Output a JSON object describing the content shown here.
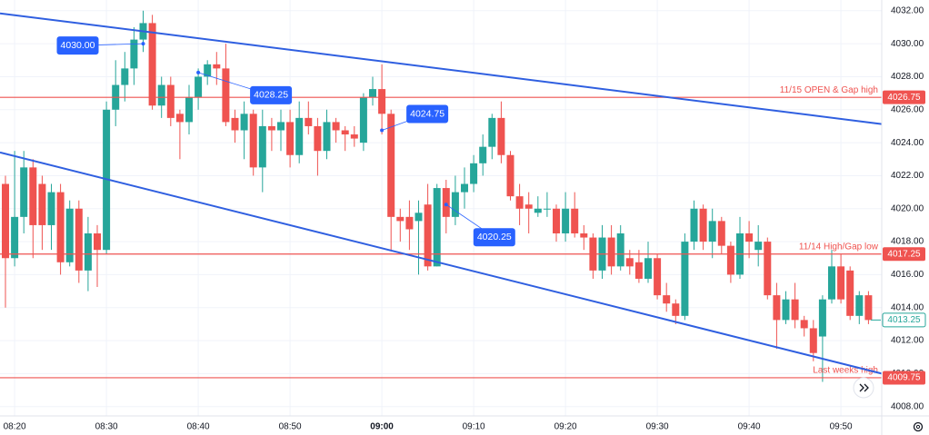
{
  "chart_data": {
    "type": "candlestick",
    "categories": [
      null,
      "08:20",
      null,
      null,
      null,
      null,
      null,
      null,
      null,
      null,
      null,
      "08:30",
      null,
      null,
      null,
      null,
      null,
      null,
      null,
      null,
      null,
      "08:40",
      null,
      null,
      null,
      null,
      null,
      null,
      null,
      null,
      null,
      "08:50",
      null,
      null,
      null,
      null,
      null,
      null,
      null,
      null,
      null,
      "09:00",
      null,
      null,
      null,
      null,
      null,
      null,
      null,
      null,
      null,
      "09:10",
      null,
      null,
      null,
      null,
      null,
      null,
      null,
      null,
      null,
      "09:20",
      null,
      null,
      null,
      null,
      null,
      null,
      null,
      null,
      null,
      "09:30",
      null,
      null,
      null,
      null,
      null,
      null,
      null,
      null,
      null,
      "09:40",
      null,
      null,
      null,
      null,
      null,
      null,
      null,
      null,
      null,
      "09:50",
      null,
      null,
      null
    ],
    "open": [
      4021.5,
      4017,
      4019.5,
      4022.5,
      4021.5,
      4019,
      4021,
      4016.75,
      4020,
      4016.25,
      4018.5,
      4017.5,
      4026,
      4027.5,
      4028.5,
      4030.25,
      4031.25,
      4026.25,
      4027.5,
      4025.75,
      4025.25,
      4026.75,
      4028,
      4028.75,
      4028.5,
      4025.5,
      4024.75,
      4025.75,
      4022.5,
      4025,
      4024.75,
      4025.25,
      4023.25,
      4025.5,
      4025,
      4023.5,
      4025.25,
      4024.75,
      4024.5,
      4024,
      4026.75,
      4027.25,
      4025.75,
      4019.5,
      4019.5,
      4019.25,
      4020.25,
      4016.5,
      4021.25,
      4019.5,
      4021,
      4021.5,
      4022.75,
      4023.75,
      4025.5,
      4023.25,
      4020.75,
      4020.25,
      4019.75,
      4020,
      4020,
      4018.5,
      4020,
      4018.5,
      4018.25,
      4016.25,
      4018.25,
      4016.5,
      4017,
      4016.75,
      4015.75,
      4017,
      4014.75,
      4014.25,
      4013.5,
      4018,
      4020,
      4018,
      4019.25,
      4017.75,
      4016,
      4018.5,
      4017.5,
      4018,
      4014.75,
      4013.25,
      4014.5,
      4013.25,
      4012.75,
      4012.25,
      4014.5,
      4016.5,
      4016.25,
      4013.5,
      4014.75
    ],
    "high": [
      4022,
      4023.5,
      4023.5,
      4023,
      4022,
      4021.5,
      4021.5,
      4020.5,
      4020.5,
      4019.5,
      4019,
      4026.5,
      4029,
      4029.5,
      4031,
      4032,
      4031.75,
      4028,
      4028,
      4026,
      4027.5,
      4028.5,
      4029,
      4029.5,
      4030,
      4026,
      4026.5,
      4026,
      4026,
      4025.5,
      4026,
      4026,
      4026.5,
      4026.5,
      4025.5,
      4026,
      4025.5,
      4025,
      4025,
      4027,
      4028,
      4028.75,
      4026,
      4020,
      4020.5,
      4020.5,
      4021.5,
      4021.5,
      4021.75,
      4022,
      4022.5,
      4023.25,
      4024.5,
      4025.75,
      4026.5,
      4023.5,
      4021.5,
      4021,
      4020.75,
      4021,
      4020.25,
      4021,
      4021,
      4019,
      4018.5,
      4019,
      4019,
      4019,
      4017.5,
      4017.5,
      4018,
      4017.25,
      4015.5,
      4014.5,
      4018.5,
      4020.5,
      4020.25,
      4020,
      4019.5,
      4018,
      4019.5,
      4019.25,
      4019,
      4018.25,
      4015.5,
      4015,
      4015.5,
      4013.5,
      4013.25,
      4014.75,
      4017.5,
      4017.25,
      4016.5,
      4015,
      4015
    ],
    "low": [
      4014,
      4016.5,
      4018.5,
      4017,
      4017.5,
      4017.5,
      4016,
      4016.5,
      4015.5,
      4015,
      4015.25,
      4017.25,
      4025,
      4026.5,
      4027.5,
      4029.5,
      4026,
      4025.5,
      4025,
      4023,
      4024.5,
      4026,
      4027.5,
      4027.5,
      4025,
      4024,
      4023,
      4022,
      4021,
      4023.5,
      4023.5,
      4022.5,
      4022.75,
      4024.5,
      4022,
      4023,
      4024,
      4023.5,
      4023.75,
      4023.5,
      4026.25,
      4024.5,
      4017.5,
      4018,
      4017.5,
      4016,
      4016.25,
      4016.5,
      4018.5,
      4019,
      4020,
      4021,
      4022,
      4023,
      4022.75,
      4020.5,
      4019,
      4018.5,
      4019.5,
      4019.5,
      4018,
      4018,
      4018.25,
      4017.5,
      4015.75,
      4015.75,
      4016,
      4016.25,
      4016,
      4015.5,
      4015.5,
      4014.5,
      4013.75,
      4013,
      4013.25,
      4017.5,
      4017.5,
      4017,
      4017.25,
      4015.5,
      4015.75,
      4017,
      4016.5,
      4014.5,
      4011.5,
      4013,
      4012.75,
      4012.25,
      4010.75,
      4009.5,
      4014.25,
      4014.25,
      4013.25,
      4013,
      4013
    ],
    "close": [
      4017,
      4019.5,
      4022.5,
      4019,
      4019,
      4021,
      4016.75,
      4020,
      4016.25,
      4018.5,
      4017.5,
      4026,
      4027.5,
      4028.5,
      4030.25,
      4031.25,
      4026.25,
      4027.5,
      4025.5,
      4025.25,
      4026.75,
      4028,
      4028.75,
      4028.5,
      4025.25,
      4024.75,
      4025.75,
      4022.5,
      4025,
      4024.75,
      4025.25,
      4023.25,
      4025.5,
      4025,
      4023.5,
      4025.25,
      4024.75,
      4024.5,
      4024.25,
      4026.75,
      4027.25,
      4025.75,
      4019.5,
      4019.25,
      4018.75,
      4019.75,
      4016.5,
      4021.25,
      4019.5,
      4021,
      4021.5,
      4022.75,
      4023.75,
      4025.5,
      4023.25,
      4020.75,
      4020,
      4020,
      4020,
      4020,
      4018.5,
      4020,
      4018.5,
      4018.25,
      4016.25,
      4018.25,
      4016.5,
      4018.5,
      4016.5,
      4015.75,
      4017,
      4014.75,
      4014.25,
      4013.5,
      4018,
      4020,
      4018,
      4019.25,
      4017.75,
      4016,
      4018.5,
      4018,
      4018,
      4014.75,
      4013.25,
      4014.5,
      4013.25,
      4012.75,
      4011.25,
      4014.5,
      4016.5,
      4014.5,
      4013.5,
      4014.75,
      4013.25
    ],
    "up_color": "#26a69a",
    "down_color": "#ef5350",
    "ylim": [
      4007.6,
      4032.65
    ],
    "yticks": [
      {
        "value": 4008,
        "label": "4008.00"
      },
      {
        "value": 4010,
        "label": "4010.00"
      },
      {
        "value": 4012,
        "label": "4012.00"
      },
      {
        "value": 4014,
        "label": "4014.00"
      },
      {
        "value": 4016,
        "label": "4016.00"
      },
      {
        "value": 4018,
        "label": "4018.00"
      },
      {
        "value": 4020,
        "label": "4020.00"
      },
      {
        "value": 4022,
        "label": "4022.00"
      },
      {
        "value": 4024,
        "label": "4024.00"
      },
      {
        "value": 4026,
        "label": "4026.00"
      },
      {
        "value": 4028,
        "label": "4028.00"
      },
      {
        "value": 4030,
        "label": "4030.00"
      },
      {
        "value": 4032,
        "label": "4032.00"
      }
    ],
    "grid": true,
    "levels": [
      {
        "value": 4026.75,
        "text": "11/15 OPEN & Gap high",
        "color": "#ef5350"
      },
      {
        "value": 4017.25,
        "text": "11/14 High/Gap low",
        "color": "#ef5350"
      },
      {
        "value": 4009.75,
        "text": "Last weeks high",
        "color": "#ef5350"
      }
    ],
    "trendlines": [
      {
        "start": [
          -0.594,
          4031.84
        ],
        "end": [
          95.45,
          4025.13
        ],
        "color": "#2f5fe0"
      },
      {
        "start": [
          -0.594,
          4023.41
        ],
        "end": [
          95.45,
          4010.0
        ],
        "color": "#2f5fe0"
      }
    ],
    "annotations": [
      {
        "value": 4030,
        "label": "4030.00",
        "index": 15
      },
      {
        "value": 4028.25,
        "index": 21
      },
      {
        "value": 4024.75,
        "index": 41
      },
      {
        "value": 4020.25,
        "index": 48
      }
    ],
    "annotation_color": "#2962ff",
    "last_price": 4013.25
  }
}
